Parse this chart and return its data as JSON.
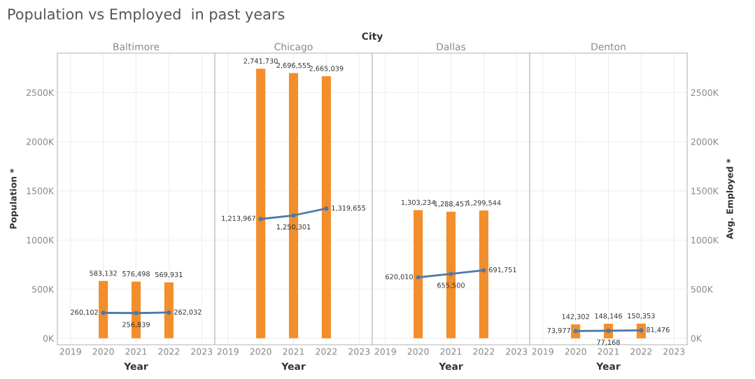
{
  "chart_data": [
    {
      "type": "bar",
      "title": "Baltimore",
      "xlabel": "Year",
      "ylabel": "Population *",
      "annotations": [
        "Population vs Employed  in past years",
        "City"
      ],
      "x": [
        2020,
        2021,
        2022
      ],
      "xlim": [
        2018.6,
        2023.4
      ],
      "xticks": [
        2019,
        2020,
        2021,
        2022,
        2023
      ],
      "ylim": [
        -65000,
        2900000
      ],
      "yticks": [
        {
          "value": 0,
          "label": "0K"
        },
        {
          "value": 500000,
          "label": "500K"
        },
        {
          "value": 1000000,
          "label": "1000K"
        },
        {
          "value": 1500000,
          "label": "1500K"
        },
        {
          "value": 2000000,
          "label": "2000K"
        },
        {
          "value": 2500000,
          "label": "2500K"
        }
      ],
      "grid": true,
      "marker": "circle",
      "series": [
        {
          "color": "#f28e2b",
          "values": [
            583132,
            576498,
            569931
          ],
          "value_labels": [
            "583,132",
            "576,498",
            "569,931"
          ]
        },
        {
          "type": "line",
          "color": "#4e79a7",
          "values": [
            260102,
            256839,
            262032
          ],
          "value_labels": [
            "260,102",
            "256,839",
            "262,032"
          ]
        }
      ]
    },
    {
      "type": "bar",
      "title": "Chicago",
      "xlabel": "Year",
      "x": [
        2020,
        2021,
        2022
      ],
      "xlim": [
        2018.6,
        2023.4
      ],
      "xticks": [
        2019,
        2020,
        2021,
        2022,
        2023
      ],
      "ylim": [
        -65000,
        2900000
      ],
      "grid": true,
      "marker": "circle",
      "tick_labels": "x",
      "series": [
        {
          "color": "#f28e2b",
          "values": [
            2741730,
            2696555,
            2665039
          ],
          "value_labels": [
            "2,741,730",
            "2,696,555",
            "2,665,039"
          ]
        },
        {
          "type": "line",
          "color": "#4e79a7",
          "values": [
            1213967,
            1250301,
            1319655
          ],
          "value_labels": [
            "1,213,967",
            "1,250,301",
            "1,319,655"
          ]
        }
      ]
    },
    {
      "type": "bar",
      "title": "Dallas",
      "xlabel": "Year",
      "x": [
        2020,
        2021,
        2022
      ],
      "xlim": [
        2018.6,
        2023.4
      ],
      "xticks": [
        2019,
        2020,
        2021,
        2022,
        2023
      ],
      "ylim": [
        -65000,
        2900000
      ],
      "grid": true,
      "marker": "circle",
      "tick_labels": "x",
      "series": [
        {
          "color": "#f28e2b",
          "values": [
            1303234,
            1288457,
            1299544
          ],
          "value_labels": [
            "1,303,234",
            "1,288,457",
            "1,299,544"
          ]
        },
        {
          "type": "line",
          "color": "#4e79a7",
          "values": [
            620010,
            655500,
            691751
          ],
          "value_labels": [
            "620,010",
            "655,500",
            "691,751"
          ]
        }
      ]
    },
    {
      "type": "bar",
      "title": "Denton",
      "xlabel": "Year",
      "y2label": "Avg. Employed *",
      "x": [
        2020,
        2021,
        2022
      ],
      "xlim": [
        2018.6,
        2023.4
      ],
      "xticks": [
        2019,
        2020,
        2021,
        2022,
        2023
      ],
      "y2lim": [
        -65000,
        2900000
      ],
      "y2ticks": [
        {
          "value": 0,
          "label": "0K"
        },
        {
          "value": 500000,
          "label": "500K"
        },
        {
          "value": 1000000,
          "label": "1000K"
        },
        {
          "value": 1500000,
          "label": "1500K"
        },
        {
          "value": 2000000,
          "label": "2000K"
        },
        {
          "value": 2500000,
          "label": "2500K"
        }
      ],
      "grid": true,
      "marker": "circle",
      "series": [
        {
          "axis": "y2",
          "color": "#f28e2b",
          "values": [
            142302,
            148146,
            150353
          ],
          "value_labels": [
            "142,302",
            "148,146",
            "150,353"
          ]
        },
        {
          "type": "line",
          "axis": "y2",
          "color": "#4e79a7",
          "values": [
            73977,
            77168,
            81476
          ],
          "value_labels": [
            "73,977",
            "77,168",
            "81,476"
          ]
        }
      ]
    }
  ]
}
